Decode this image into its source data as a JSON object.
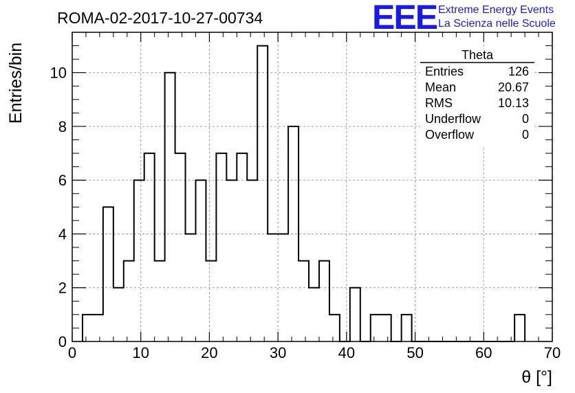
{
  "chart_data": {
    "type": "bar",
    "title": "ROMA-02-2017-10-27-00734",
    "xlabel": "θ [°]",
    "ylabel": "Entries/bin",
    "xlim": [
      0,
      70
    ],
    "ylim": [
      0,
      11.5
    ],
    "x_ticks": [
      "0",
      "10",
      "20",
      "30",
      "40",
      "50",
      "60",
      "70"
    ],
    "y_ticks": [
      "0",
      "2",
      "4",
      "6",
      "8",
      "10"
    ],
    "grid": true,
    "bin_edges": [
      1.5,
      3,
      4.5,
      6,
      7.5,
      9,
      10.5,
      12,
      13.5,
      15,
      16.5,
      18,
      19.5,
      21,
      22.5,
      24,
      25.5,
      27,
      28.5,
      30,
      31.5,
      33,
      34.5,
      36,
      37.5,
      39,
      40.5,
      42,
      43.5,
      45,
      46.5,
      48,
      49.5,
      51,
      52.5,
      54,
      55.5,
      57,
      58.5,
      60,
      61.5,
      63,
      64.5,
      66
    ],
    "values": [
      1,
      1,
      5,
      2,
      3,
      6,
      7,
      3,
      10,
      7,
      4,
      6,
      3,
      7,
      6,
      7,
      6,
      11,
      4,
      4,
      8,
      3,
      2,
      3,
      1,
      0,
      2,
      0,
      1,
      1,
      0,
      1,
      0,
      0,
      0,
      0,
      0,
      0,
      0,
      0,
      0,
      0,
      1
    ],
    "stats_box": {
      "name": "Theta",
      "rows": [
        {
          "label": "Entries",
          "value": "126"
        },
        {
          "label": "Mean",
          "value": "20.67"
        },
        {
          "label": "RMS",
          "value": "10.13"
        },
        {
          "label": "Underflow",
          "value": "0"
        },
        {
          "label": "Overflow",
          "value": "0"
        }
      ]
    },
    "line_color": "#000000",
    "grid_color": "#a0a0a0"
  },
  "logo": {
    "text": "EEE",
    "line1": "Extreme Energy Events",
    "line2": "La Scienza nelle Scuole",
    "color": "#1a1ae6"
  }
}
